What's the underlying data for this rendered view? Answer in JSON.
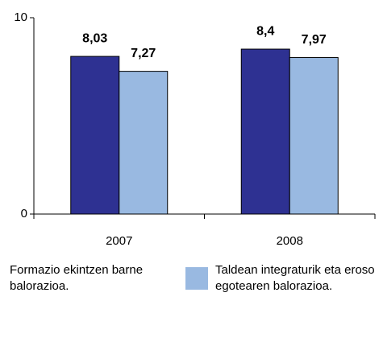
{
  "chart_data": {
    "type": "bar",
    "categories": [
      "2007",
      "2008"
    ],
    "series": [
      {
        "name": "Formazio ekintzen barne balorazioa.",
        "color": "#2e3192",
        "values": [
          8.03,
          8.4
        ],
        "value_labels": [
          "8,03",
          "8,4"
        ]
      },
      {
        "name": "Taldean integraturik eta eroso egotearen balorazioa.",
        "color": "#99b9e1",
        "values": [
          7.27,
          7.97
        ],
        "value_labels": [
          "7,27",
          "7,97"
        ]
      }
    ],
    "ylim": [
      0,
      10
    ],
    "yticks": [
      0,
      10
    ],
    "grid": false,
    "legend": "bottom"
  }
}
